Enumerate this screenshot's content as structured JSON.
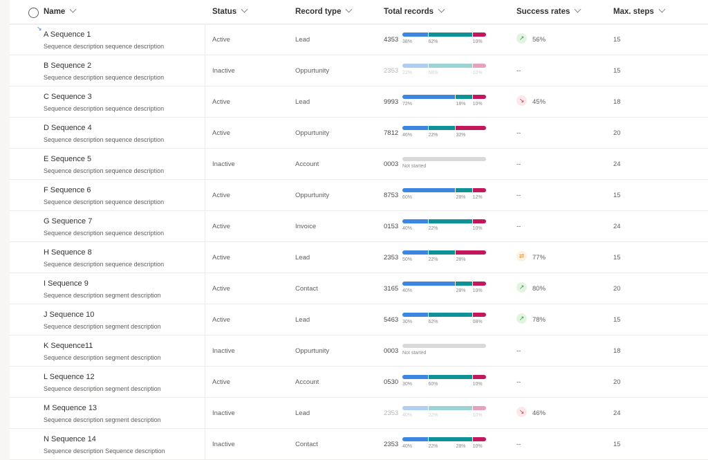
{
  "columns": {
    "name": "Name",
    "status": "Status",
    "record_type": "Record type",
    "total_records": "Total records",
    "success_rates": "Success rates",
    "max_steps": "Max. steps"
  },
  "colors": {
    "blue": "#3b86e0",
    "teal": "#0e9296",
    "red": "#c2185b",
    "grey": "#d9d9d9",
    "up": "#e3f4e3",
    "down": "#fde7e9",
    "flat": "#fff1e0"
  },
  "rows": [
    {
      "name": "A Sequence 1",
      "description": "Sequence description sequence description",
      "status": "Active",
      "record_type": "Lead",
      "total": "4353",
      "faded": false,
      "segments": [
        {
          "share": 31,
          "color": "blue"
        },
        {
          "share": 53,
          "color": "teal"
        },
        {
          "share": 16,
          "color": "red"
        }
      ],
      "labels": [
        {
          "text": "38%",
          "at": 0
        },
        {
          "text": "62%",
          "at": 31
        },
        {
          "text": "10%",
          "at": 84
        }
      ],
      "trend": "up",
      "success": "56%",
      "steps": "15"
    },
    {
      "name": "B Sequence 2",
      "description": "Sequence description sequence description",
      "status": "Inactive",
      "record_type": "Oppurtunity",
      "total": "2353",
      "faded": true,
      "segments": [
        {
          "share": 31,
          "color": "blue"
        },
        {
          "share": 53,
          "color": "teal"
        },
        {
          "share": 16,
          "color": "red"
        }
      ],
      "labels": [
        {
          "text": "22%",
          "at": 0
        },
        {
          "text": "58%",
          "at": 31
        },
        {
          "text": "10%",
          "at": 84
        }
      ],
      "trend": "",
      "success": "--",
      "steps": "15"
    },
    {
      "name": "C Sequence 3",
      "description": "Sequence description sequence description",
      "status": "Active",
      "record_type": "Lead",
      "total": "9993",
      "faded": false,
      "segments": [
        {
          "share": 64,
          "color": "blue"
        },
        {
          "share": 20,
          "color": "teal"
        },
        {
          "share": 16,
          "color": "red"
        }
      ],
      "labels": [
        {
          "text": "72%",
          "at": 0
        },
        {
          "text": "18%",
          "at": 64
        },
        {
          "text": "10%",
          "at": 84
        }
      ],
      "trend": "down",
      "success": "45%",
      "steps": "18"
    },
    {
      "name": "D Sequence 4",
      "description": "Sequence description sequence description",
      "status": "Active",
      "record_type": "Oppurtunity",
      "total": "7812",
      "faded": false,
      "segments": [
        {
          "share": 31,
          "color": "blue"
        },
        {
          "share": 33,
          "color": "teal"
        },
        {
          "share": 36,
          "color": "red"
        }
      ],
      "labels": [
        {
          "text": "46%",
          "at": 0
        },
        {
          "text": "22%",
          "at": 31
        },
        {
          "text": "32%",
          "at": 64
        }
      ],
      "trend": "",
      "success": "--",
      "steps": "20"
    },
    {
      "name": "E Sequence 5",
      "description": "Sequence description sequence description",
      "status": "Inactive",
      "record_type": "Account",
      "total": "0003",
      "faded": false,
      "segments": [
        {
          "share": 100,
          "color": "grey"
        }
      ],
      "labels": [
        {
          "text": "Not started",
          "at": 0
        }
      ],
      "trend": "",
      "success": "--",
      "steps": "24"
    },
    {
      "name": "F Sequence 6",
      "description": "Sequence description sequence description",
      "status": "Active",
      "record_type": "Oppurtunity",
      "total": "8753",
      "faded": false,
      "segments": [
        {
          "share": 64,
          "color": "blue"
        },
        {
          "share": 20,
          "color": "teal"
        },
        {
          "share": 16,
          "color": "red"
        }
      ],
      "labels": [
        {
          "text": "60%",
          "at": 0
        },
        {
          "text": "28%",
          "at": 64
        },
        {
          "text": "12%",
          "at": 84
        }
      ],
      "trend": "",
      "success": "--",
      "steps": "15"
    },
    {
      "name": "G Sequence 7",
      "description": "Sequence description sequence description",
      "status": "Active",
      "record_type": "Invoice",
      "total": "0153",
      "faded": false,
      "segments": [
        {
          "share": 31,
          "color": "blue"
        },
        {
          "share": 53,
          "color": "teal"
        },
        {
          "share": 16,
          "color": "red"
        }
      ],
      "labels": [
        {
          "text": "40%",
          "at": 0
        },
        {
          "text": "22%",
          "at": 31
        },
        {
          "text": "10%",
          "at": 84
        }
      ],
      "trend": "",
      "success": "--",
      "steps": "24"
    },
    {
      "name": "H Sequence 8",
      "description": "Sequence description sequence description",
      "status": "Active",
      "record_type": "Lead",
      "total": "2353",
      "faded": false,
      "segments": [
        {
          "share": 31,
          "color": "blue"
        },
        {
          "share": 33,
          "color": "teal"
        },
        {
          "share": 36,
          "color": "red"
        }
      ],
      "labels": [
        {
          "text": "50%",
          "at": 0
        },
        {
          "text": "22%",
          "at": 31
        },
        {
          "text": "28%",
          "at": 64
        }
      ],
      "trend": "flat",
      "success": "77%",
      "steps": "15"
    },
    {
      "name": "I Sequence 9",
      "description": "Sequence description segment description",
      "status": "Active",
      "record_type": "Contact",
      "total": "3165",
      "faded": false,
      "segments": [
        {
          "share": 64,
          "color": "blue"
        },
        {
          "share": 20,
          "color": "teal"
        },
        {
          "share": 16,
          "color": "red"
        }
      ],
      "labels": [
        {
          "text": "40%",
          "at": 0
        },
        {
          "text": "28%",
          "at": 64
        },
        {
          "text": "10%",
          "at": 84
        }
      ],
      "trend": "up",
      "success": "80%",
      "steps": "20"
    },
    {
      "name": "J Sequence 10",
      "description": "Sequence description segment description",
      "status": "Active",
      "record_type": "Lead",
      "total": "5463",
      "faded": false,
      "segments": [
        {
          "share": 31,
          "color": "blue"
        },
        {
          "share": 53,
          "color": "teal"
        },
        {
          "share": 16,
          "color": "red"
        }
      ],
      "labels": [
        {
          "text": "30%",
          "at": 0
        },
        {
          "text": "62%",
          "at": 31
        },
        {
          "text": "08%",
          "at": 84
        }
      ],
      "trend": "up",
      "success": "78%",
      "steps": "15"
    },
    {
      "name": "K Sequence11",
      "description": "Sequence description segment description",
      "status": "Inactive",
      "record_type": "Oppurtunity",
      "total": "0003",
      "faded": false,
      "segments": [
        {
          "share": 100,
          "color": "grey"
        }
      ],
      "labels": [
        {
          "text": "Not started",
          "at": 0
        }
      ],
      "trend": "",
      "success": "--",
      "steps": "18"
    },
    {
      "name": "L Sequence 12",
      "description": "Sequence description segment description",
      "status": "Active",
      "record_type": "Account",
      "total": "0530",
      "faded": false,
      "segments": [
        {
          "share": 31,
          "color": "blue"
        },
        {
          "share": 53,
          "color": "teal"
        },
        {
          "share": 16,
          "color": "red"
        }
      ],
      "labels": [
        {
          "text": "30%",
          "at": 0
        },
        {
          "text": "60%",
          "at": 31
        },
        {
          "text": "10%",
          "at": 84
        }
      ],
      "trend": "",
      "success": "--",
      "steps": "20"
    },
    {
      "name": "M Sequence 13",
      "description": "Sequence description segment description",
      "status": "Inactive",
      "record_type": "Lead",
      "total": "2353",
      "faded": true,
      "segments": [
        {
          "share": 31,
          "color": "blue"
        },
        {
          "share": 53,
          "color": "teal"
        },
        {
          "share": 16,
          "color": "red"
        }
      ],
      "labels": [
        {
          "text": "40%",
          "at": 0
        },
        {
          "text": "22%",
          "at": 31
        },
        {
          "text": "10%",
          "at": 84
        }
      ],
      "trend": "down",
      "success": "46%",
      "steps": "24"
    },
    {
      "name": "N Sequence 14",
      "description": "Sequence description Sequence description",
      "status": "Inactive",
      "record_type": "Contact",
      "total": "2353",
      "faded": false,
      "segments": [
        {
          "share": 31,
          "color": "blue"
        },
        {
          "share": 53,
          "color": "teal"
        },
        {
          "share": 16,
          "color": "red"
        }
      ],
      "labels": [
        {
          "text": "40%",
          "at": 0
        },
        {
          "text": "22%",
          "at": 31
        },
        {
          "text": "28%",
          "at": 64
        },
        {
          "text": "10%",
          "at": 84
        }
      ],
      "trend": "",
      "success": "--",
      "steps": "15"
    }
  ]
}
